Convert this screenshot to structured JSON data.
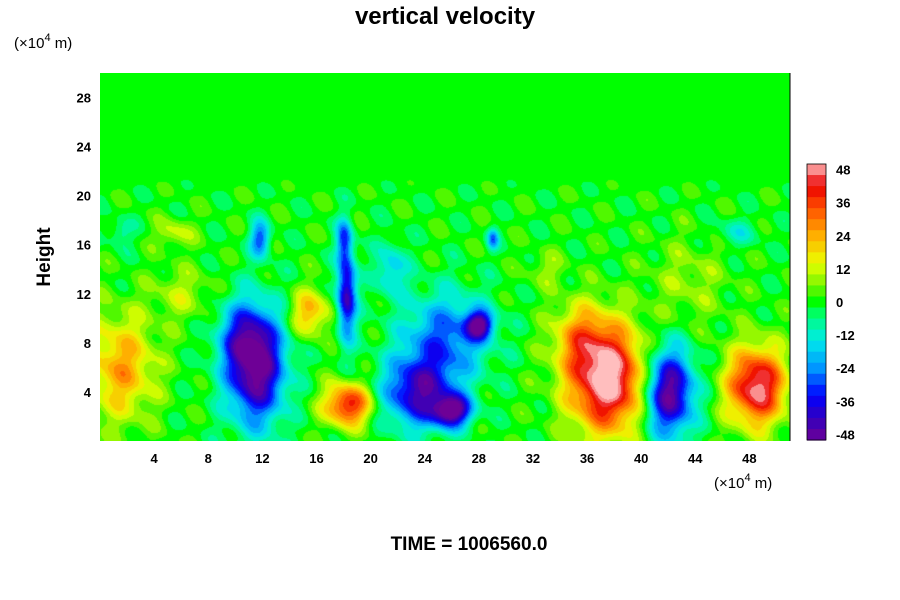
{
  "chart_data": {
    "type": "heatmap",
    "title": "vertical velocity",
    "xunit_prefix": "(×10",
    "xunit_exp": "4",
    "xunit_suffix": " m)",
    "yunit_prefix": "(×10",
    "yunit_exp": "4",
    "yunit_suffix": " m)",
    "ylabel": "Height",
    "xlim": [
      0,
      51
    ],
    "ylim": [
      0,
      30
    ],
    "x_ticks": [
      "4",
      "8",
      "12",
      "16",
      "20",
      "24",
      "28",
      "32",
      "36",
      "40",
      "44",
      "48"
    ],
    "y_ticks": [
      "4",
      "8",
      "12",
      "16",
      "20",
      "24",
      "28"
    ],
    "colorbar": {
      "range": [
        -50,
        50
      ],
      "ticks": [
        "48",
        "36",
        "24",
        "12",
        "0",
        "-12",
        "-24",
        "-36",
        "-48"
      ]
    },
    "background_value": 0,
    "features": [
      {
        "x": 11.5,
        "y": 6,
        "sx": 1.5,
        "sy": 3.2,
        "value": -52
      },
      {
        "x": 10.5,
        "y": 8.5,
        "sx": 1.3,
        "sy": 2.0,
        "value": -20
      },
      {
        "x": 18.2,
        "y": 12,
        "sx": 0.5,
        "sy": 2.5,
        "value": -45
      },
      {
        "x": 18.0,
        "y": 16.5,
        "sx": 0.4,
        "sy": 1.2,
        "value": -25
      },
      {
        "x": 11.8,
        "y": 16.5,
        "sx": 0.5,
        "sy": 1.0,
        "value": -30
      },
      {
        "x": 15.5,
        "y": 10.5,
        "sx": 1.0,
        "sy": 1.3,
        "value": 24
      },
      {
        "x": 18.3,
        "y": 3,
        "sx": 1.2,
        "sy": 1.2,
        "value": 42
      },
      {
        "x": 23.5,
        "y": 4,
        "sx": 1.8,
        "sy": 2.0,
        "value": -42
      },
      {
        "x": 26.0,
        "y": 2.5,
        "sx": 1.0,
        "sy": 0.9,
        "value": -48
      },
      {
        "x": 25.5,
        "y": 8.5,
        "sx": 2.2,
        "sy": 2.5,
        "value": -28
      },
      {
        "x": 28.0,
        "y": 9.5,
        "sx": 0.7,
        "sy": 0.8,
        "value": -45
      },
      {
        "x": 29.0,
        "y": 16.5,
        "sx": 0.3,
        "sy": 0.6,
        "value": -25
      },
      {
        "x": 37.5,
        "y": 5,
        "sx": 2.0,
        "sy": 3.0,
        "value": 55
      },
      {
        "x": 35.5,
        "y": 8.5,
        "sx": 1.5,
        "sy": 2.0,
        "value": 20
      },
      {
        "x": 42.0,
        "y": 4,
        "sx": 1.3,
        "sy": 2.5,
        "value": -52
      },
      {
        "x": 48.5,
        "y": 4.5,
        "sx": 1.5,
        "sy": 2.2,
        "value": 50
      },
      {
        "x": 1.5,
        "y": 6,
        "sx": 1.8,
        "sy": 3.0,
        "value": 25
      },
      {
        "x": 43.5,
        "y": 13,
        "sx": 2.0,
        "sy": 2.5,
        "value": 8
      },
      {
        "x": 6.0,
        "y": 12,
        "sx": 1.5,
        "sy": 1.5,
        "value": 10
      },
      {
        "x": 5.5,
        "y": 17,
        "sx": 1.0,
        "sy": 0.8,
        "value": 12
      },
      {
        "x": 1.5,
        "y": 17,
        "sx": 0.6,
        "sy": 0.8,
        "value": -10
      },
      {
        "x": 21.5,
        "y": 14,
        "sx": 0.8,
        "sy": 1.5,
        "value": -18
      },
      {
        "x": 33.0,
        "y": 14,
        "sx": 1.0,
        "sy": 1.0,
        "value": 8
      },
      {
        "x": 47.0,
        "y": 17,
        "sx": 1.2,
        "sy": 0.8,
        "value": -10
      }
    ]
  },
  "footer": {
    "time_text": "TIME = 1006560.0"
  }
}
